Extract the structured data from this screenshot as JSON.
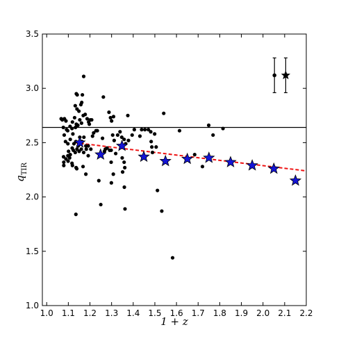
{
  "chart_data": {
    "type": "scatter",
    "xlabel": "1 + z",
    "ylabel": "q",
    "ylabel_sub": "TIR",
    "xlim": [
      0.98,
      2.2
    ],
    "ylim": [
      1.0,
      3.5
    ],
    "xticks": [
      1.0,
      1.1,
      1.2,
      1.3,
      1.4,
      1.5,
      1.6,
      1.7,
      1.8,
      1.9,
      2.0,
      2.1,
      2.2
    ],
    "xtick_labels": [
      "1.0",
      "1.1",
      "1.2",
      "1.3",
      "1.4",
      "1.5",
      "1.6",
      "1.7",
      "1.8",
      "1.9",
      "2.0",
      "2.1",
      "2.2"
    ],
    "yticks": [
      1.0,
      1.5,
      2.0,
      2.5,
      3.0,
      3.5
    ],
    "ytick_labels": [
      "1.0",
      "1.5",
      "2.0",
      "2.5",
      "3.0",
      "3.5"
    ],
    "grid": false,
    "colors": {
      "points": "#000000",
      "stars": "#1414d6",
      "star_edge": "#000000",
      "trend": "#ee1111",
      "reference": "#000000"
    },
    "reference_line": {
      "y": 2.64
    },
    "trend_line": {
      "x": [
        1.13,
        2.2
      ],
      "y": [
        2.5,
        2.24
      ]
    },
    "series": [
      {
        "marker": "dot",
        "points": [
          [
            1.067,
            2.72
          ],
          [
            1.072,
            2.71
          ],
          [
            1.082,
            2.72
          ],
          [
            1.089,
            2.7
          ],
          [
            1.077,
            2.64
          ],
          [
            1.092,
            2.62
          ],
          [
            1.097,
            2.61
          ],
          [
            1.108,
            2.65
          ],
          [
            1.119,
            2.69
          ],
          [
            1.117,
            2.63
          ],
          [
            1.121,
            2.58
          ],
          [
            1.133,
            2.64
          ],
          [
            1.137,
            2.67
          ],
          [
            1.144,
            2.66
          ],
          [
            1.153,
            2.71
          ],
          [
            1.161,
            2.68
          ],
          [
            1.169,
            2.75
          ],
          [
            1.178,
            2.76
          ],
          [
            1.187,
            2.72
          ],
          [
            1.194,
            2.69
          ],
          [
            1.201,
            2.71
          ],
          [
            1.208,
            2.71
          ],
          [
            1.197,
            2.67
          ],
          [
            1.129,
            2.73
          ],
          [
            1.149,
            2.79
          ],
          [
            1.14,
            2.81
          ],
          [
            1.132,
            2.84
          ],
          [
            1.158,
            2.85
          ],
          [
            1.162,
            2.87
          ],
          [
            1.165,
            2.94
          ],
          [
            1.137,
            2.95
          ],
          [
            1.141,
            2.94
          ],
          [
            1.171,
            3.11
          ],
          [
            1.212,
            2.56
          ],
          [
            1.217,
            2.59
          ],
          [
            1.228,
            2.61
          ],
          [
            1.081,
            2.57
          ],
          [
            1.087,
            2.51
          ],
          [
            1.098,
            2.49
          ],
          [
            1.109,
            2.53
          ],
          [
            1.118,
            2.45
          ],
          [
            1.126,
            2.49
          ],
          [
            1.135,
            2.51
          ],
          [
            1.146,
            2.47
          ],
          [
            1.153,
            2.55
          ],
          [
            1.163,
            2.51
          ],
          [
            1.172,
            2.55
          ],
          [
            1.181,
            2.47
          ],
          [
            1.192,
            2.47
          ],
          [
            1.204,
            2.44
          ],
          [
            1.101,
            2.42
          ],
          [
            1.109,
            2.39
          ],
          [
            1.123,
            2.43
          ],
          [
            1.132,
            2.41
          ],
          [
            1.14,
            2.44
          ],
          [
            1.15,
            2.42
          ],
          [
            1.16,
            2.44
          ],
          [
            1.171,
            2.41
          ],
          [
            1.183,
            2.44
          ],
          [
            1.192,
            2.38
          ],
          [
            1.078,
            2.37
          ],
          [
            1.079,
            2.32
          ],
          [
            1.089,
            2.35
          ],
          [
            1.099,
            2.33
          ],
          [
            1.098,
            2.38
          ],
          [
            1.117,
            2.31
          ],
          [
            1.119,
            2.29
          ],
          [
            1.136,
            2.27
          ],
          [
            1.139,
            2.26
          ],
          [
            1.168,
            2.28
          ],
          [
            1.181,
            2.21
          ],
          [
            1.079,
            2.29
          ],
          [
            1.135,
            1.84
          ],
          [
            1.262,
            2.92
          ],
          [
            1.288,
            2.78
          ],
          [
            1.295,
            2.73
          ],
          [
            1.3,
            2.7
          ],
          [
            1.309,
            2.74
          ],
          [
            1.258,
            2.54
          ],
          [
            1.267,
            2.42
          ],
          [
            1.271,
            2.44
          ],
          [
            1.279,
            2.45
          ],
          [
            1.291,
            2.43
          ],
          [
            1.298,
            2.43
          ],
          [
            1.305,
            2.57
          ],
          [
            1.312,
            2.52
          ],
          [
            1.319,
            2.4
          ],
          [
            1.328,
            2.57
          ],
          [
            1.339,
            2.6
          ],
          [
            1.347,
            2.55
          ],
          [
            1.358,
            2.53
          ],
          [
            1.365,
            2.49
          ],
          [
            1.378,
            2.52
          ],
          [
            1.395,
            2.57
          ],
          [
            1.405,
            2.62
          ],
          [
            1.349,
            2.36
          ],
          [
            1.358,
            2.32
          ],
          [
            1.351,
            2.23
          ],
          [
            1.361,
            2.27
          ],
          [
            1.298,
            2.32
          ],
          [
            1.308,
            2.21
          ],
          [
            1.299,
            2.13
          ],
          [
            1.241,
            2.15
          ],
          [
            1.25,
            1.93
          ],
          [
            1.359,
            2.09
          ],
          [
            1.362,
            1.89
          ],
          [
            1.431,
            2.56
          ],
          [
            1.439,
            2.62
          ],
          [
            1.454,
            2.62
          ],
          [
            1.47,
            2.62
          ],
          [
            1.481,
            2.6
          ],
          [
            1.483,
            2.51
          ],
          [
            1.486,
            2.46
          ],
          [
            1.489,
            2.41
          ],
          [
            1.499,
            2.58
          ],
          [
            1.506,
            2.46
          ],
          [
            1.512,
            2.06
          ],
          [
            1.532,
            1.87
          ],
          [
            1.541,
            2.77
          ],
          [
            1.582,
            1.44
          ],
          [
            1.614,
            2.61
          ],
          [
            1.684,
            2.39
          ],
          [
            1.72,
            2.28
          ],
          [
            1.749,
            2.66
          ],
          [
            1.769,
            2.57
          ],
          [
            1.815,
            2.63
          ],
          [
            1.375,
            2.75
          ],
          [
            1.234,
            2.61
          ],
          [
            1.106,
            2.36
          ]
        ]
      },
      {
        "marker": "star",
        "points": [
          [
            1.153,
            2.5
          ],
          [
            1.249,
            2.39
          ],
          [
            1.348,
            2.47
          ],
          [
            1.449,
            2.37
          ],
          [
            1.549,
            2.33
          ],
          [
            1.65,
            2.35
          ],
          [
            1.75,
            2.36
          ],
          [
            1.85,
            2.32
          ],
          [
            1.95,
            2.29
          ],
          [
            2.05,
            2.26
          ],
          [
            2.15,
            2.15
          ]
        ]
      }
    ],
    "error_bars": [
      {
        "marker": "dot",
        "x": 2.053,
        "y": 3.12,
        "yerr": 0.16
      },
      {
        "marker": "star",
        "x": 2.105,
        "y": 3.12,
        "yerr": 0.16
      }
    ]
  }
}
